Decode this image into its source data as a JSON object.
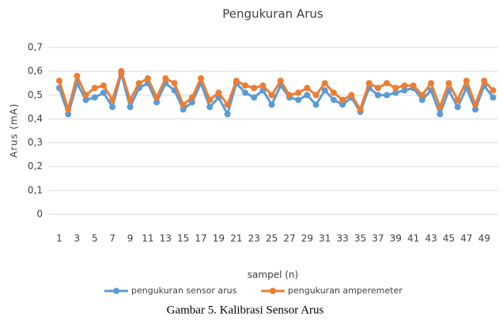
{
  "chart_data": {
    "type": "line",
    "title": "Pengukuran Arus",
    "xlabel": "sampel (n)",
    "ylabel": "Arus (mA)",
    "caption": "Gambar 5. Kalibrasi Sensor Arus",
    "categories": [
      "1",
      null,
      "3",
      null,
      "5",
      null,
      "7",
      null,
      "9",
      null,
      "11",
      null,
      "13",
      null,
      "15",
      null,
      "17",
      null,
      "19",
      null,
      "21",
      null,
      "23",
      null,
      "25",
      null,
      "27",
      null,
      "29",
      null,
      "31",
      null,
      "33",
      null,
      "35",
      null,
      "37",
      null,
      "39",
      null,
      "41",
      null,
      "43",
      null,
      "45",
      null,
      "47",
      null,
      "49",
      null
    ],
    "series": [
      {
        "name": "pengukuran sensor arus",
        "color": "#5b9bd5",
        "values": [
          0.53,
          0.42,
          0.55,
          0.48,
          0.49,
          0.51,
          0.45,
          0.59,
          0.45,
          0.53,
          0.55,
          0.47,
          0.55,
          0.52,
          0.44,
          0.47,
          0.55,
          0.45,
          0.49,
          0.42,
          0.55,
          0.51,
          0.49,
          0.52,
          0.46,
          0.54,
          0.49,
          0.48,
          0.5,
          0.46,
          0.52,
          0.48,
          0.46,
          0.49,
          0.43,
          0.53,
          0.5,
          0.5,
          0.51,
          0.52,
          0.53,
          0.48,
          0.52,
          0.42,
          0.52,
          0.45,
          0.53,
          0.44,
          0.54,
          0.49
        ]
      },
      {
        "name": "pengukuran amperemeter",
        "color": "#ed7d31",
        "values": [
          0.56,
          0.44,
          0.58,
          0.5,
          0.53,
          0.54,
          0.48,
          0.6,
          0.48,
          0.55,
          0.57,
          0.49,
          0.57,
          0.55,
          0.46,
          0.49,
          0.57,
          0.48,
          0.51,
          0.46,
          0.56,
          0.54,
          0.53,
          0.54,
          0.5,
          0.56,
          0.5,
          0.51,
          0.53,
          0.5,
          0.55,
          0.51,
          0.48,
          0.5,
          0.44,
          0.55,
          0.53,
          0.55,
          0.53,
          0.54,
          0.54,
          0.5,
          0.55,
          0.45,
          0.55,
          0.48,
          0.56,
          0.46,
          0.56,
          0.52
        ]
      }
    ],
    "ylim": [
      0,
      0.7
    ],
    "yticks": [
      0,
      {
        "value": 0.1,
        "label": "0,1"
      },
      {
        "value": 0.2,
        "label": "0,2"
      },
      {
        "value": 0.3,
        "label": "0,3"
      },
      {
        "value": 0.4,
        "label": "0,4"
      },
      {
        "value": 0.5,
        "label": "0,5"
      },
      {
        "value": 0.6,
        "label": "0,6"
      },
      {
        "value": 0.7,
        "label": "0,7"
      }
    ],
    "grid": true,
    "legend": "bottom"
  }
}
